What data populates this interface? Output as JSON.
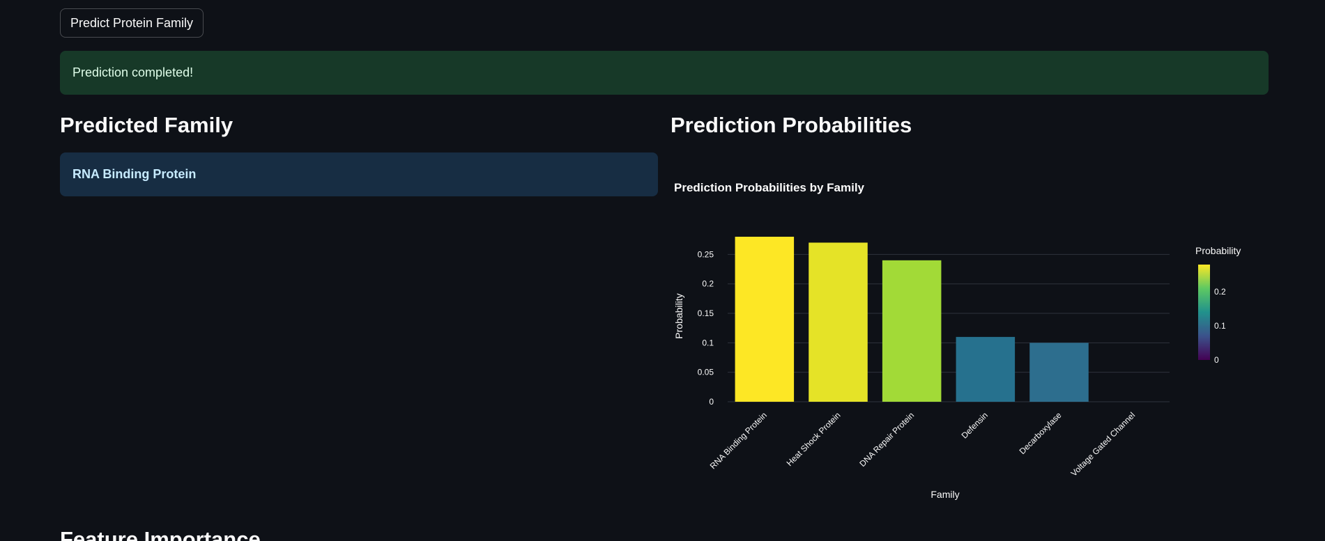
{
  "predict_button_label": "Predict Protein Family",
  "success_message": "Prediction completed!",
  "predicted_family": {
    "heading": "Predicted Family",
    "value": "RNA Binding Protein"
  },
  "probabilities_section": {
    "heading": "Prediction Probabilities"
  },
  "feature_importance_heading": "Feature Importance",
  "chart_data": {
    "type": "bar",
    "title": "Prediction Probabilities by Family",
    "xlabel": "Family",
    "ylabel": "Probability",
    "categories": [
      "RNA Binding Protein",
      "Heat Shock Protein",
      "DNA Repair Protein",
      "Defensin",
      "Decarboxylase",
      "Voltage Gated Channel"
    ],
    "values": [
      0.28,
      0.27,
      0.24,
      0.11,
      0.1,
      0
    ],
    "bar_colors": [
      "#fde725",
      "#e5e327",
      "#a2da37",
      "#26718e",
      "#2d6e8e",
      "#440154"
    ],
    "ylim": [
      0,
      0.28
    ],
    "yticks": [
      0,
      0.05,
      0.1,
      0.15,
      0.2,
      0.25
    ],
    "ytick_labels": [
      "0",
      "0.05",
      "0.1",
      "0.15",
      "0.2",
      "0.25"
    ],
    "grid": true,
    "colorbar": {
      "title": "Probability",
      "ticks": [
        0,
        0.1,
        0.2
      ],
      "tick_labels": [
        "0",
        "0.1",
        "0.2"
      ],
      "range": [
        0,
        0.28
      ],
      "colors": [
        "#440154",
        "#3b528b",
        "#21918c",
        "#5ec962",
        "#fde725"
      ]
    }
  }
}
